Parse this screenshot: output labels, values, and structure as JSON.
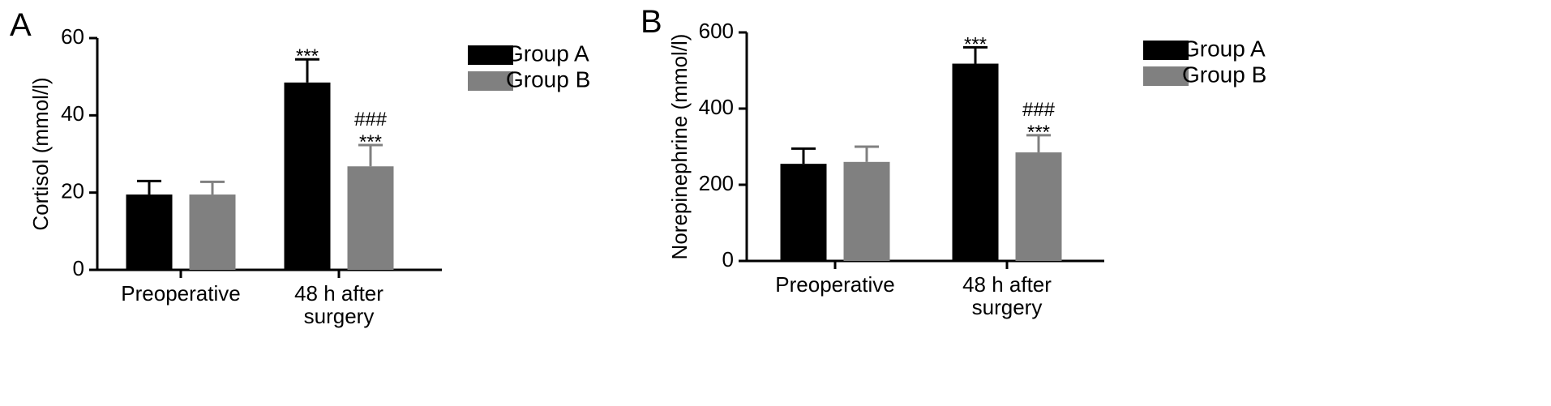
{
  "chart_data": [
    {
      "panel_label": "A",
      "type": "bar",
      "ylabel": "Cortisol (mmol/l)",
      "ylim": [
        0,
        60
      ],
      "yticks": [
        0,
        20,
        40,
        60
      ],
      "categories": [
        [
          "Preoperative"
        ],
        [
          "48 h after",
          "surgery"
        ]
      ],
      "series": [
        {
          "name": "Group A",
          "color": "#000000",
          "values": [
            19.5,
            48.5
          ],
          "errors": [
            3.5,
            6.0
          ]
        },
        {
          "name": "Group B",
          "color": "#808080",
          "values": [
            19.5,
            26.8
          ],
          "errors": [
            3.3,
            5.5
          ]
        }
      ],
      "annotations": [
        {
          "category": 1,
          "series": 0,
          "lines": [
            "***"
          ]
        },
        {
          "category": 1,
          "series": 1,
          "lines": [
            "###",
            "***"
          ]
        }
      ],
      "legend": "top-right"
    },
    {
      "panel_label": "B",
      "type": "bar",
      "ylabel": "Norepinephrine (mmol/l)",
      "ylim": [
        0,
        600
      ],
      "yticks": [
        0,
        200,
        400,
        600
      ],
      "categories": [
        [
          "Preoperative"
        ],
        [
          "48 h after",
          "surgery"
        ]
      ],
      "series": [
        {
          "name": "Group A",
          "color": "#000000",
          "values": [
            255,
            518
          ],
          "errors": [
            40,
            43
          ]
        },
        {
          "name": "Group B",
          "color": "#808080",
          "values": [
            260,
            285
          ],
          "errors": [
            40,
            45
          ]
        }
      ],
      "annotations": [
        {
          "category": 1,
          "series": 0,
          "lines": [
            "***"
          ]
        },
        {
          "category": 1,
          "series": 1,
          "lines": [
            "###",
            "***"
          ]
        }
      ],
      "legend": "top-right"
    }
  ]
}
